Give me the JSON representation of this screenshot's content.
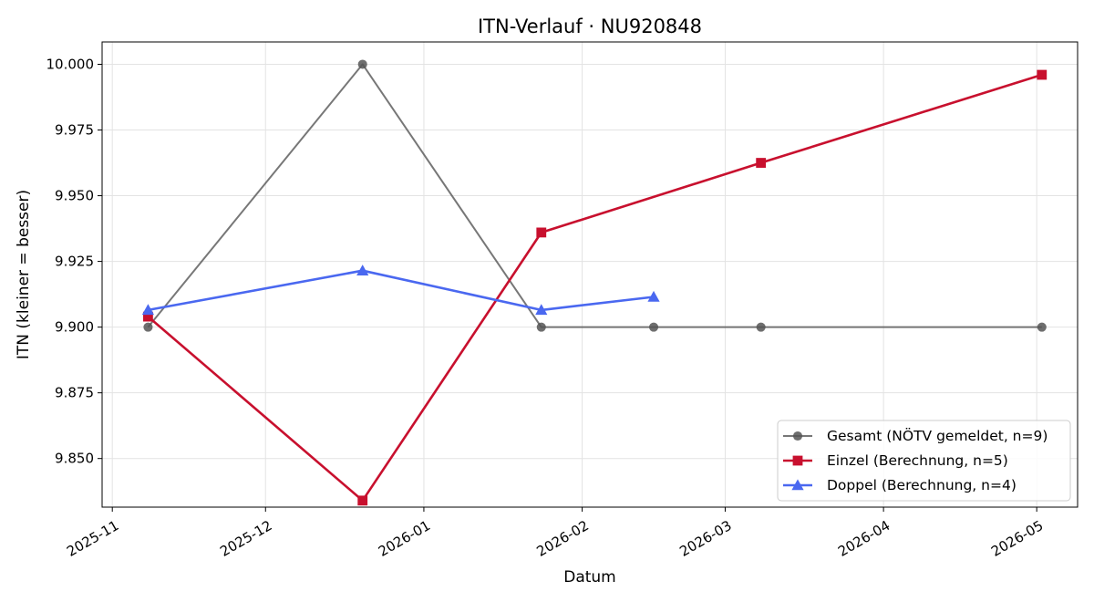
{
  "chart_data": {
    "type": "line",
    "title": "ITN-Verlauf · NU920848",
    "xlabel": "Datum",
    "ylabel": "ITN  (kleiner = besser)",
    "x_axis_type": "date",
    "xlim": [
      "2025-10-30",
      "2026-05-09"
    ],
    "ylim": [
      9.8315,
      10.0085
    ],
    "x_ticks": [
      {
        "date": "2025-11-01",
        "label": "2025-11"
      },
      {
        "date": "2025-12-01",
        "label": "2025-12"
      },
      {
        "date": "2026-01-01",
        "label": "2026-01"
      },
      {
        "date": "2026-02-01",
        "label": "2026-02"
      },
      {
        "date": "2026-03-01",
        "label": "2026-03"
      },
      {
        "date": "2026-04-01",
        "label": "2026-04"
      },
      {
        "date": "2026-05-01",
        "label": "2026-05"
      }
    ],
    "y_ticks": [
      {
        "value": 9.85,
        "label": "9.850"
      },
      {
        "value": 9.875,
        "label": "9.875"
      },
      {
        "value": 9.9,
        "label": "9.900"
      },
      {
        "value": 9.925,
        "label": "9.925"
      },
      {
        "value": 9.95,
        "label": "9.950"
      },
      {
        "value": 9.975,
        "label": "9.975"
      },
      {
        "value": 10.0,
        "label": "10.000"
      }
    ],
    "grid": true,
    "legend_position": "bottom-right",
    "series": [
      {
        "name": "Gesamt (NÖTV gemeldet, n=9)",
        "color": "#555555",
        "marker": "circle",
        "points": [
          {
            "x": "2025-11-08",
            "y": 9.9
          },
          {
            "x": "2025-12-20",
            "y": 10.0
          },
          {
            "x": "2026-01-24",
            "y": 9.9
          },
          {
            "x": "2026-02-15",
            "y": 9.9
          },
          {
            "x": "2026-03-08",
            "y": 9.9
          },
          {
            "x": "2026-05-02",
            "y": 9.9
          }
        ]
      },
      {
        "name": "Einzel (Berechnung, n=5)",
        "color": "#c8102e",
        "marker": "square",
        "points": [
          {
            "x": "2025-11-08",
            "y": 9.904
          },
          {
            "x": "2025-12-20",
            "y": 9.834
          },
          {
            "x": "2026-01-24",
            "y": 9.936
          },
          {
            "x": "2026-03-08",
            "y": 9.9625
          },
          {
            "x": "2026-05-02",
            "y": 9.996
          }
        ]
      },
      {
        "name": "Doppel (Berechnung, n=4)",
        "color": "#4a68f0",
        "marker": "triangle",
        "points": [
          {
            "x": "2025-11-08",
            "y": 9.9065
          },
          {
            "x": "2025-12-20",
            "y": 9.9215
          },
          {
            "x": "2026-01-24",
            "y": 9.9065
          },
          {
            "x": "2026-02-15",
            "y": 9.9115
          }
        ]
      }
    ]
  }
}
